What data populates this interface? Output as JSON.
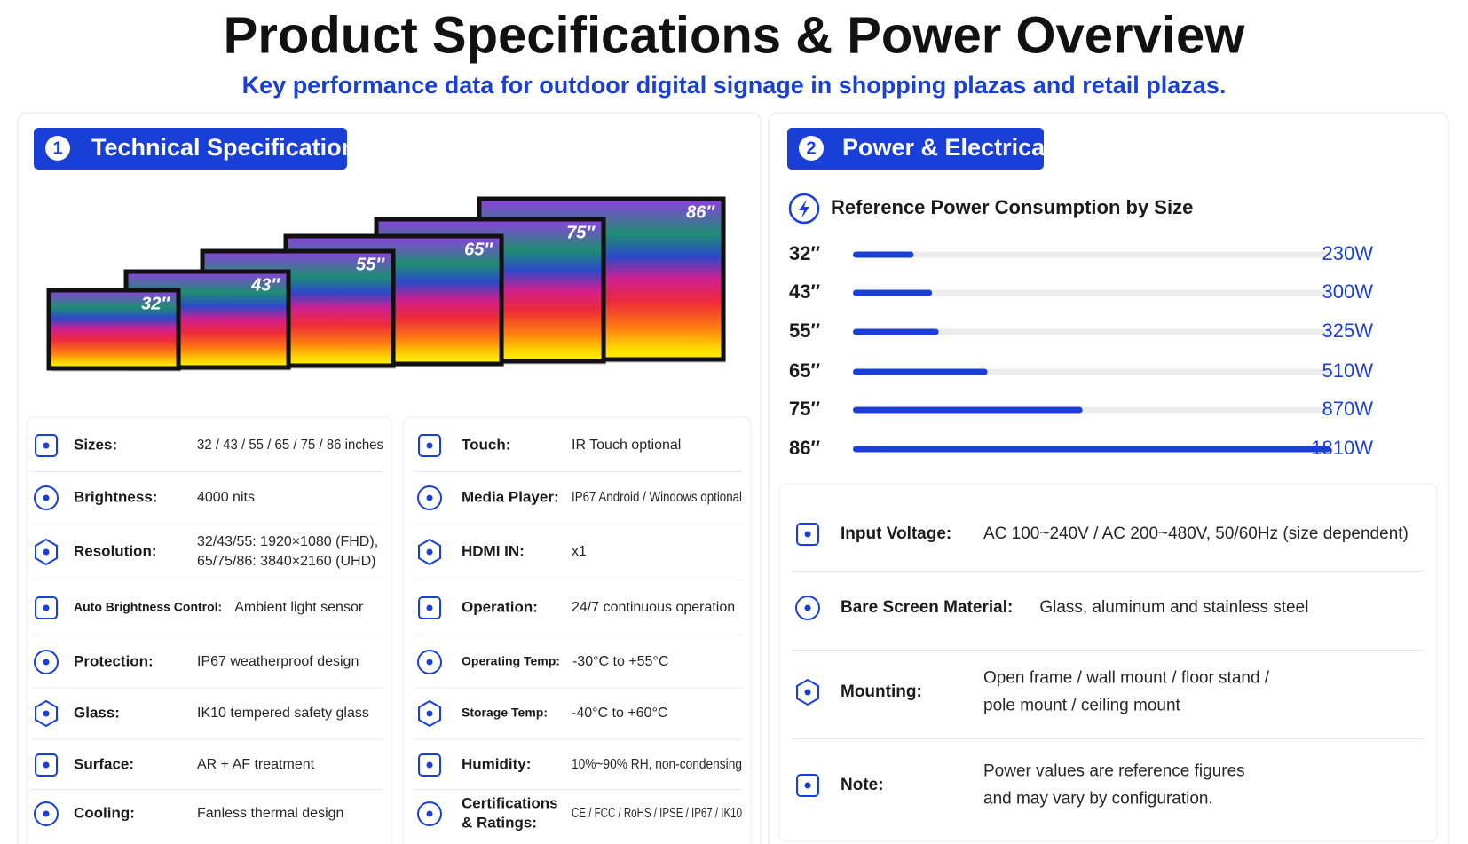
{
  "header": {
    "title": "Product Specifications & Power Overview",
    "subtitle": "Key performance data for outdoor digital signage in shopping plazas and retail plazas."
  },
  "technical": {
    "badge_number": "1",
    "badge": "Technical Specifications",
    "screen_labels": [
      "32″",
      "43″",
      "55″",
      "65″",
      "75″",
      "86″"
    ],
    "specs_left": [
      {
        "label": [
          "Sizes:"
        ],
        "value": [
          "32 / 43 / 55 / 65 / 75 / 86 inches"
        ]
      },
      {
        "label": [
          "Brightness:"
        ],
        "value": [
          "4000 nits"
        ]
      },
      {
        "label": [
          "Resolution:"
        ],
        "value": [
          "32/43/55: 1920×1080 (FHD),",
          "65/75/86: 3840×2160 (UHD)"
        ]
      },
      {
        "label": [
          "Auto Brightness Control:"
        ],
        "value": [
          "Ambient light sensor"
        ]
      },
      {
        "label": [
          "Protection:"
        ],
        "value": [
          "IP67 weatherproof design"
        ]
      },
      {
        "label": [
          "Glass:"
        ],
        "value": [
          "IK10 tempered safety glass"
        ]
      },
      {
        "label": [
          "Surface:"
        ],
        "value": [
          "AR + AF treatment"
        ]
      },
      {
        "label": [
          "Cooling:"
        ],
        "value": [
          "Fanless thermal design"
        ]
      }
    ],
    "specs_right": [
      {
        "label": [
          "Touch:"
        ],
        "value": [
          "IR Touch optional"
        ]
      },
      {
        "label": [
          "Media Player:"
        ],
        "value": [
          "IP67 Android / Windows optional"
        ]
      },
      {
        "label": [
          "HDMI IN:"
        ],
        "value": [
          "x1"
        ]
      },
      {
        "label": [
          "Operation:"
        ],
        "value": [
          "24/7 continuous operation"
        ]
      },
      {
        "label": [
          "Operating Temp:"
        ],
        "value": [
          "-30°C to +55°C"
        ]
      },
      {
        "label": [
          "Storage Temp:"
        ],
        "value": [
          "-40°C to +60°C"
        ]
      },
      {
        "label": [
          "Humidity:"
        ],
        "value": [
          "10%~90% RH, non-condensing"
        ]
      },
      {
        "label": [
          "Certifications",
          "& Ratings:"
        ],
        "value": [
          "CE / FCC / RoHS / IPSE / IP67 / IK10"
        ]
      }
    ]
  },
  "power": {
    "badge_number": "2",
    "badge": "Power & Electrical"
  },
  "chart_data": {
    "type": "bar",
    "orientation": "horizontal",
    "title": "Reference Power Consumption by Size",
    "categories": [
      "32″",
      "43″",
      "55″",
      "65″",
      "75″",
      "86″"
    ],
    "values": [
      230,
      300,
      325,
      510,
      870,
      1810
    ],
    "value_labels": [
      "230W",
      "300W",
      "325W",
      "510W",
      "870W",
      "1810W"
    ],
    "color": "#1a3fd6"
  },
  "electrical": [
    {
      "label": [
        "Input Voltage:"
      ],
      "value": [
        "AC 100~240V / AC 200~480V, 50/60Hz (size dependent)"
      ]
    },
    {
      "label": [
        "Bare Screen Material:"
      ],
      "value": [
        "Glass, aluminum and stainless steel"
      ]
    },
    {
      "label": [
        "Mounting:"
      ],
      "value": [
        "Open frame / wall mount / floor stand /",
        "pole mount / ceiling mount"
      ]
    },
    {
      "label": [
        "Note:"
      ],
      "value": [
        "Power values are reference figures",
        "and may vary by configuration."
      ]
    }
  ]
}
